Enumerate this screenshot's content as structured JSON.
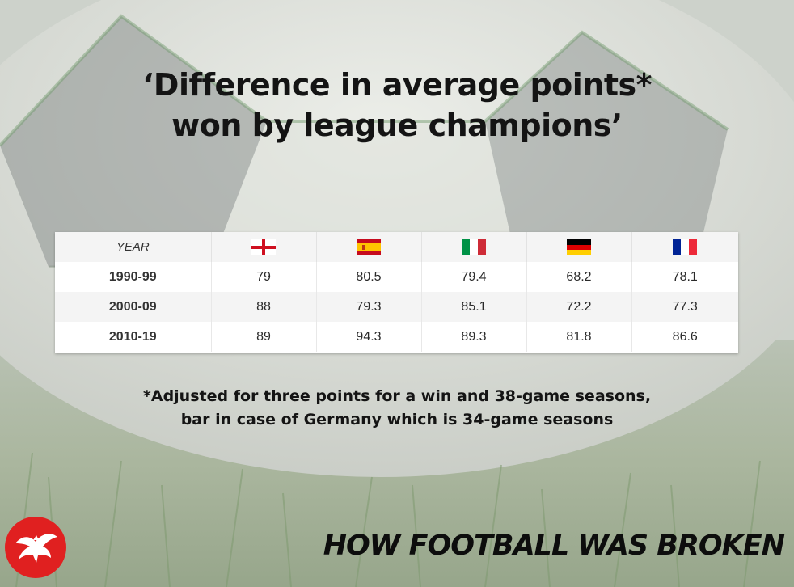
{
  "title": {
    "line1": "‘Difference in average points*",
    "line2": "won by league champions’"
  },
  "chart_data": {
    "type": "table",
    "columns": [
      {
        "label": "YEAR"
      },
      {
        "flag": "england",
        "icon": "england-flag-icon"
      },
      {
        "flag": "spain",
        "icon": "spain-flag-icon"
      },
      {
        "flag": "italy",
        "icon": "italy-flag-icon"
      },
      {
        "flag": "germany",
        "icon": "germany-flag-icon"
      },
      {
        "flag": "france",
        "icon": "france-flag-icon"
      }
    ],
    "rows": [
      {
        "year": "1990-99",
        "values": [
          "79",
          "80.5",
          "79.4",
          "68.2",
          "78.1"
        ]
      },
      {
        "year": "2000-09",
        "values": [
          "88",
          "79.3",
          "85.1",
          "72.2",
          "77.3"
        ]
      },
      {
        "year": "2010-19",
        "values": [
          "89",
          "94.3",
          "89.3",
          "81.8",
          "86.6"
        ]
      }
    ]
  },
  "footnote": {
    "line1": "*Adjusted for three points for a win and 38-game seasons,",
    "line2": "bar in case of Germany which is 34-game seasons"
  },
  "branding": {
    "logo_icon": "eagle-logo-icon",
    "logo_color": "#e02020",
    "series_title": "HOW FOOTBALL WAS BROKEN"
  }
}
